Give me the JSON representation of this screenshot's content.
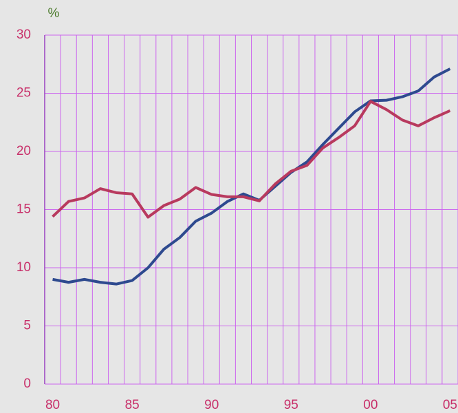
{
  "chart_data": {
    "type": "line",
    "y_unit": "%",
    "x": [
      1980,
      1981,
      1982,
      1983,
      1984,
      1985,
      1986,
      1987,
      1988,
      1989,
      1990,
      1991,
      1992,
      1993,
      1994,
      1995,
      1996,
      1997,
      1998,
      1999,
      2000,
      2001,
      2002,
      2003,
      2004,
      2005
    ],
    "series": [
      {
        "color": "#2e4a8f",
        "values": [
          9.0,
          8.75,
          9.0,
          8.75,
          8.6,
          8.9,
          10.0,
          11.6,
          12.6,
          14.0,
          14.7,
          15.7,
          16.35,
          15.8,
          17.0,
          18.2,
          19.1,
          20.6,
          22.0,
          23.4,
          24.35,
          24.4,
          24.7,
          25.2,
          26.4,
          27.1
        ]
      },
      {
        "color": "#b83a5e",
        "values": [
          14.4,
          15.7,
          16.0,
          16.8,
          16.45,
          16.35,
          14.35,
          15.35,
          15.9,
          16.9,
          16.3,
          16.1,
          16.1,
          15.75,
          17.2,
          18.3,
          18.8,
          20.3,
          21.2,
          22.2,
          24.3,
          23.6,
          22.7,
          22.2,
          22.9,
          23.5
        ]
      }
    ],
    "xlim": [
      1979.5,
      2005.5
    ],
    "xticks": [
      {
        "value": 1980,
        "label": "80"
      },
      {
        "value": 1985,
        "label": "85"
      },
      {
        "value": 1990,
        "label": "90"
      },
      {
        "value": 1995,
        "label": "95"
      },
      {
        "value": 2000,
        "label": "00"
      },
      {
        "value": 2005,
        "label": "05"
      }
    ],
    "ylim": [
      0,
      30
    ],
    "yticks": [
      0,
      5,
      10,
      15,
      20,
      25,
      30
    ],
    "grid": true
  }
}
